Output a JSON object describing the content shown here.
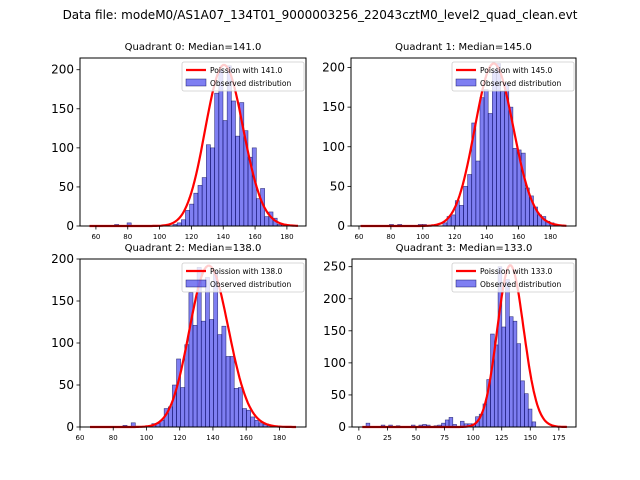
{
  "figure": {
    "suptitle": "Data file: modeM0/AS1A07_134T01_9000003256_22043cztM0_level2_quad_clean.evt"
  },
  "chart_data": [
    {
      "type": "bar",
      "title": "Quadrant 0: Median=141.0",
      "xlim": [
        50,
        192
      ],
      "ylim": [
        0,
        215
      ],
      "xticks": [
        60,
        80,
        100,
        120,
        140,
        160,
        180
      ],
      "yticks": [
        0,
        50,
        100,
        150,
        200
      ],
      "legend": {
        "placement": "top-right",
        "entries": [
          "Poission with 141.0",
          "Observed distribution"
        ]
      },
      "poisson_mean": 141.0,
      "poisson_scale": 206,
      "poisson_xrange": [
        56,
        187
      ],
      "hist": {
        "bin_start": 56,
        "bin_width": 2.62,
        "counts": [
          0,
          0,
          0,
          0,
          0,
          0,
          2,
          0,
          0,
          4,
          0,
          0,
          0,
          0,
          0,
          0,
          0,
          0,
          0,
          0,
          2,
          4,
          8,
          20,
          28,
          42,
          52,
          62,
          104,
          100,
          170,
          200,
          135,
          205,
          160,
          115,
          158,
          122,
          88,
          100,
          35,
          48,
          12,
          18,
          10,
          2,
          2,
          0,
          0,
          0
        ]
      }
    },
    {
      "type": "bar",
      "title": "Quadrant 1: Median=145.0",
      "xlim": [
        55,
        196
      ],
      "ylim": [
        0,
        212
      ],
      "xticks": [
        60,
        80,
        100,
        120,
        140,
        160,
        180
      ],
      "yticks": [
        0,
        50,
        100,
        150,
        200
      ],
      "legend": {
        "placement": "top-right",
        "entries": [
          "Poission with 145.0",
          "Observed distribution"
        ]
      },
      "poisson_mean": 145.0,
      "poisson_scale": 205,
      "poisson_xrange": [
        61,
        190
      ],
      "hist": {
        "bin_start": 61,
        "bin_width": 2.58,
        "counts": [
          0,
          0,
          0,
          0,
          0,
          0,
          0,
          2,
          0,
          2,
          0,
          0,
          0,
          0,
          2,
          2,
          0,
          0,
          0,
          0,
          4,
          12,
          14,
          32,
          26,
          50,
          65,
          130,
          82,
          162,
          172,
          142,
          196,
          205,
          170,
          180,
          150,
          98,
          96,
          92,
          48,
          38,
          24,
          14,
          12,
          6,
          4,
          2,
          0,
          0
        ]
      }
    },
    {
      "type": "bar",
      "title": "Quadrant 2: Median=138.0",
      "xlim": [
        60,
        196
      ],
      "ylim": [
        0,
        200
      ],
      "xticks": [
        60,
        80,
        100,
        120,
        140,
        160,
        180
      ],
      "yticks": [
        0,
        50,
        100,
        150,
        200
      ],
      "legend": {
        "placement": "top-right",
        "entries": [
          "Poission with 138.0",
          "Observed distribution"
        ]
      },
      "poisson_mean": 138.0,
      "poisson_scale": 192,
      "poisson_xrange": [
        66,
        190
      ],
      "hist": {
        "bin_start": 66,
        "bin_width": 2.48,
        "counts": [
          0,
          0,
          0,
          0,
          0,
          0,
          0,
          0,
          2,
          0,
          5,
          0,
          0,
          0,
          0,
          4,
          4,
          8,
          22,
          24,
          50,
          81,
          47,
          98,
          160,
          121,
          190,
          126,
          178,
          128,
          185,
          110,
          120,
          84,
          84,
          46,
          47,
          22,
          20,
          12,
          8,
          5,
          3,
          2,
          0,
          0,
          0,
          0,
          0,
          0
        ]
      }
    },
    {
      "type": "bar",
      "title": "Quadrant 3: Median=133.0",
      "xlim": [
        -6,
        190
      ],
      "ylim": [
        0,
        262
      ],
      "xticks": [
        0,
        25,
        50,
        75,
        100,
        125,
        150,
        175
      ],
      "yticks": [
        0,
        50,
        100,
        150,
        200,
        250
      ],
      "legend": {
        "placement": "top-right",
        "entries": [
          "Poission with 133.0",
          "Observed distribution"
        ]
      },
      "poisson_mean": 133.0,
      "poisson_scale": 252,
      "poisson_xrange": [
        3,
        182
      ],
      "hist": {
        "bin_start": 3,
        "bin_width": 3.3,
        "counts": [
          0,
          6,
          0,
          0,
          0,
          3,
          0,
          3,
          0,
          2,
          0,
          0,
          0,
          3,
          0,
          3,
          4,
          3,
          0,
          2,
          3,
          6,
          11,
          15,
          4,
          0,
          9,
          5,
          5,
          5,
          16,
          20,
          36,
          74,
          145,
          128,
          250,
          156,
          230,
          172,
          165,
          130,
          72,
          52,
          28,
          8,
          0,
          0,
          0
        ]
      }
    }
  ]
}
